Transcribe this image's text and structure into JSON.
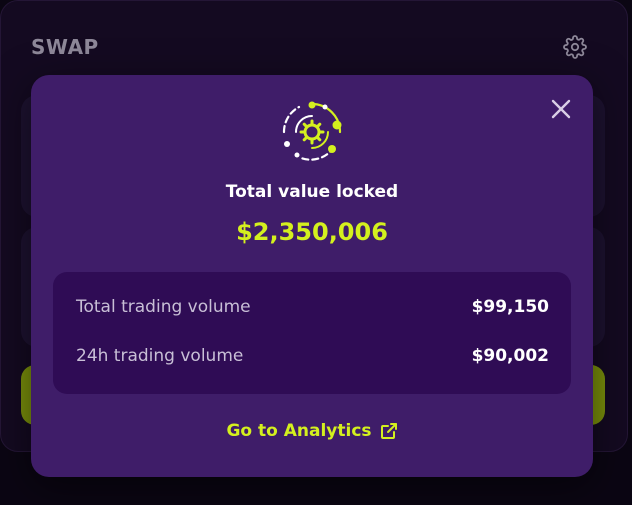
{
  "swap": {
    "title": "SWAP",
    "settings_icon": "gear-icon"
  },
  "modal": {
    "close_icon": "close-icon",
    "logo_icon": "tvl-orbit-gear-icon",
    "tvl_label": "Total value locked",
    "tvl_value": "$2,350,006",
    "stats": [
      {
        "label": "Total trading volume",
        "value": "$99,150"
      },
      {
        "label": "24h trading volume",
        "value": "$90,002"
      }
    ],
    "analytics_link": "Go to Analytics",
    "link_icon": "external-link-icon"
  },
  "colors": {
    "accent": "#d4f01e",
    "modal_bg": "#3f1d69",
    "stats_bg": "#2f0c55",
    "page_bg": "#0b0613"
  }
}
